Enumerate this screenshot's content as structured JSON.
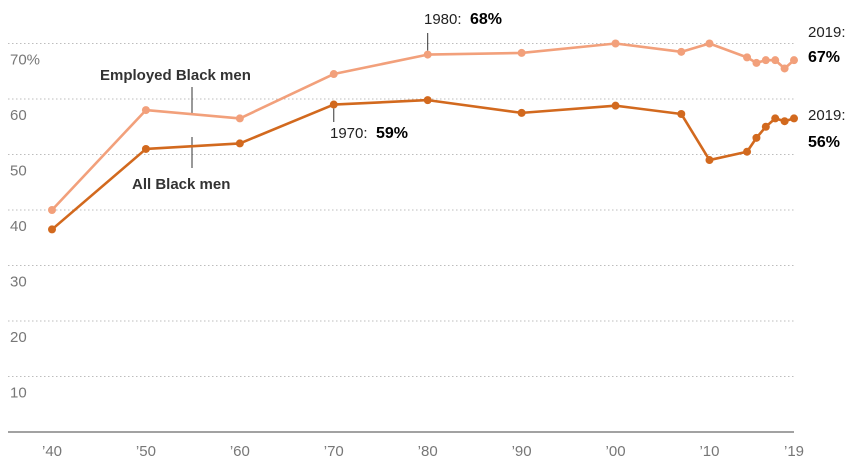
{
  "chart_data": {
    "type": "line",
    "x_ticks": [
      "’40",
      "’50",
      "’60",
      "’70",
      "’80",
      "’90",
      "’00",
      "’10",
      "’19"
    ],
    "y_ticks": [
      "10",
      "20",
      "30",
      "40",
      "50",
      "60",
      "70%"
    ],
    "ylim": [
      0,
      75
    ],
    "xlim": [
      1940,
      2019
    ],
    "grid": "horizontal dotted",
    "series": [
      {
        "name": "Employed Black men",
        "color": "#f2a07b",
        "x": [
          1940,
          1950,
          1960,
          1970,
          1980,
          1990,
          2000,
          2007,
          2010,
          2014,
          2015,
          2016,
          2017,
          2018,
          2019
        ],
        "values": [
          40,
          58,
          56.5,
          64.5,
          68,
          68.3,
          70,
          68.5,
          70,
          67.5,
          66.5,
          67,
          67,
          65.5,
          67
        ]
      },
      {
        "name": "All Black men",
        "color": "#d2691e",
        "x": [
          1940,
          1950,
          1960,
          1970,
          1980,
          1990,
          2000,
          2007,
          2010,
          2014,
          2015,
          2016,
          2017,
          2018,
          2019
        ],
        "values": [
          36.5,
          51,
          52,
          59,
          59.8,
          57.5,
          58.8,
          57.3,
          49,
          50.5,
          53,
          55,
          56.5,
          56,
          56.5
        ]
      }
    ],
    "annotations": [
      {
        "year_label": "1980:",
        "value_label": "68%"
      },
      {
        "year_label": "1970:",
        "value_label": "59%"
      },
      {
        "year_label": "2019:",
        "value_label": "67%"
      },
      {
        "year_label": "2019:",
        "value_label": "56%"
      }
    ]
  }
}
